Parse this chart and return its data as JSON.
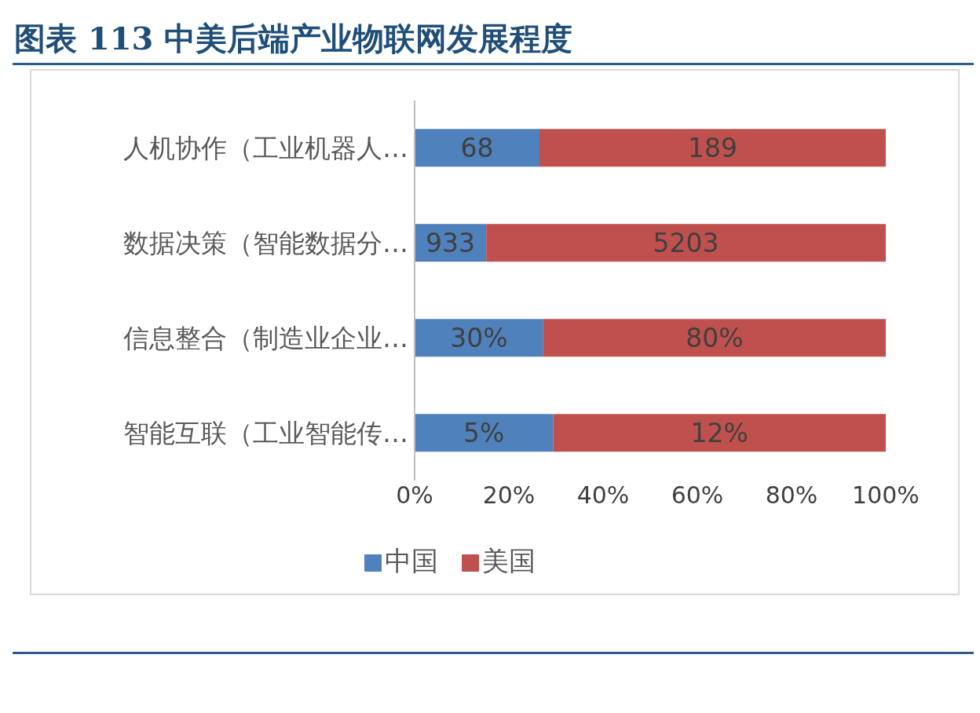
{
  "chart_data": {
    "type": "bar",
    "title": "图表 113 中美后端产业物联网发展程度",
    "orientation": "horizontal",
    "stacked": true,
    "categories": [
      "人机协作（工业机器人…",
      "数据决策（智能数据分…",
      "信息整合（制造业企业…",
      "智能互联（工业智能传…"
    ],
    "series": [
      {
        "name": "中国",
        "color": "#4f81bd",
        "values": [
          26.5,
          15.2,
          27.3,
          29.4
        ]
      },
      {
        "name": "美国",
        "color": "#c0504d",
        "values": [
          73.5,
          84.8,
          72.7,
          70.6
        ]
      }
    ],
    "annotations": [
      "68",
      "189",
      "933",
      "5203",
      "30%",
      "80%",
      "5%",
      "12%"
    ],
    "xlim": [
      0,
      100
    ],
    "xticks": [
      {
        "value": 0,
        "label": "0%"
      },
      {
        "value": 20,
        "label": "20%"
      },
      {
        "value": 40,
        "label": "40%"
      },
      {
        "value": 60,
        "label": "60%"
      },
      {
        "value": 80,
        "label": "80%"
      },
      {
        "value": 100,
        "label": "100%"
      }
    ],
    "legend": "bottom"
  }
}
